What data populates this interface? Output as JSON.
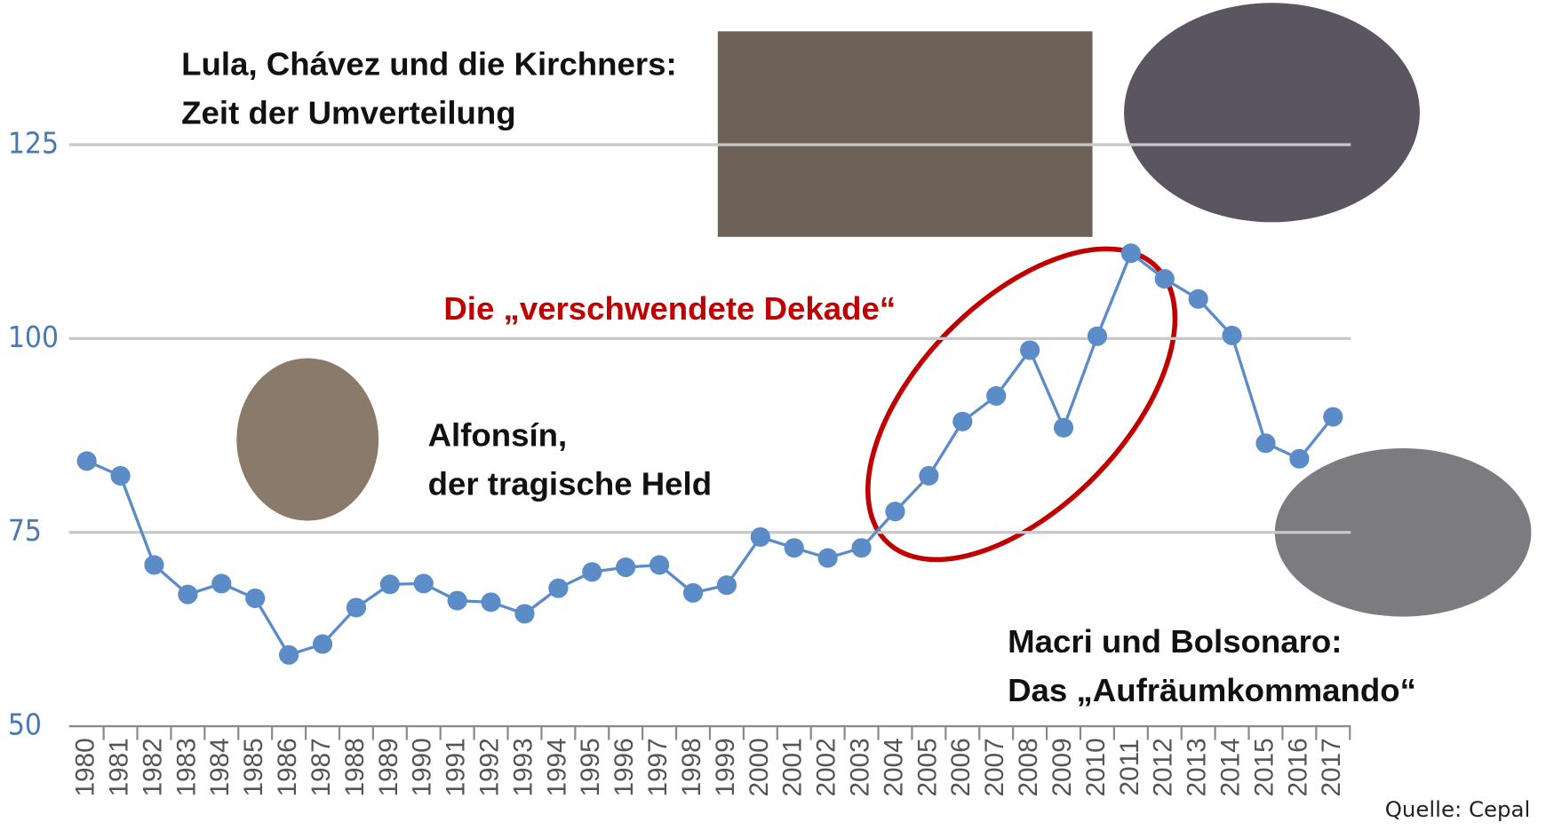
{
  "chart_data": {
    "type": "line",
    "categories": [
      "1980",
      "1981",
      "1982",
      "1983",
      "1984",
      "1985",
      "1986",
      "1987",
      "1988",
      "1989",
      "1990",
      "1991",
      "1992",
      "1993",
      "1994",
      "1995",
      "1996",
      "1997",
      "1998",
      "1999",
      "2000",
      "2001",
      "2002",
      "2003",
      "2004",
      "2005",
      "2006",
      "2007",
      "2008",
      "2009",
      "2010",
      "2011",
      "2012",
      "2013",
      "2014",
      "2015",
      "2016",
      "2017"
    ],
    "values": [
      84.2,
      82.3,
      70.8,
      67.0,
      68.4,
      66.5,
      59.2,
      60.6,
      65.3,
      68.3,
      68.4,
      66.2,
      66.0,
      64.5,
      67.8,
      69.9,
      70.5,
      70.8,
      67.2,
      68.2,
      74.4,
      73.0,
      71.7,
      73.0,
      77.7,
      82.3,
      89.3,
      92.6,
      98.5,
      88.5,
      100.3,
      111.0,
      107.7,
      105.1,
      100.4,
      86.5,
      84.5,
      89.9
    ],
    "color": "#5b8cc8",
    "ylim": [
      50,
      140
    ],
    "yticks": [
      50,
      75,
      100,
      125
    ],
    "grid": true,
    "annotations": [
      {
        "lines": [
          "Lula, Chávez und die Kirchners:",
          "Zeit der Umverteilung"
        ],
        "color": "#111111"
      },
      {
        "lines": [
          "Die „verschwendete Dekade“"
        ],
        "color": "#c00000"
      },
      {
        "lines": [
          "Alfonsín,",
          "der tragische Held"
        ],
        "color": "#111111"
      },
      {
        "lines": [
          "Macri und Bolsonaro:",
          "Das „Aufräumkommando“"
        ],
        "color": "#111111"
      }
    ],
    "source": "Quelle: Cepal"
  }
}
